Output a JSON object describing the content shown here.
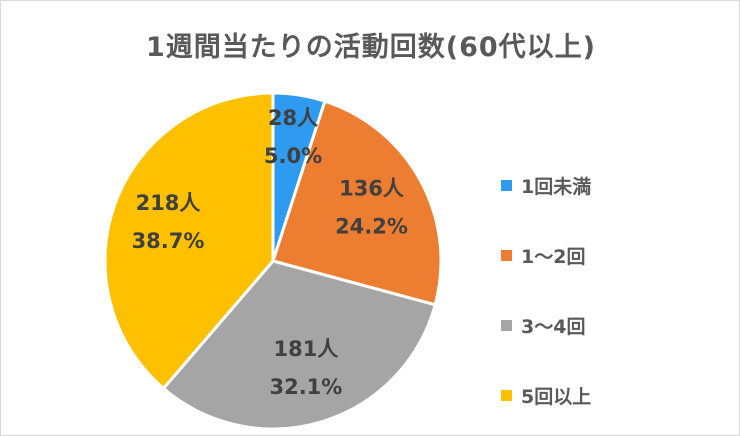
{
  "chart_data": {
    "type": "pie",
    "title": "1週間当たりの活動回数(60代以上)",
    "categories": [
      "1回未満",
      "1～2回",
      "3～4回",
      "5回以上"
    ],
    "counts": [
      28,
      136,
      181,
      218
    ],
    "count_labels": [
      "28人",
      "136人",
      "181人",
      "218人"
    ],
    "percent_labels": [
      "5.0%",
      "24.2%",
      "32.1%",
      "38.7%"
    ],
    "values": [
      5.0,
      24.2,
      32.1,
      38.7
    ],
    "colors": [
      "#2E9BF0",
      "#ED7D31",
      "#A5A5A5",
      "#FFC000"
    ],
    "start_angle_deg": 0,
    "direction": "clockwise",
    "legend_position": "right"
  }
}
